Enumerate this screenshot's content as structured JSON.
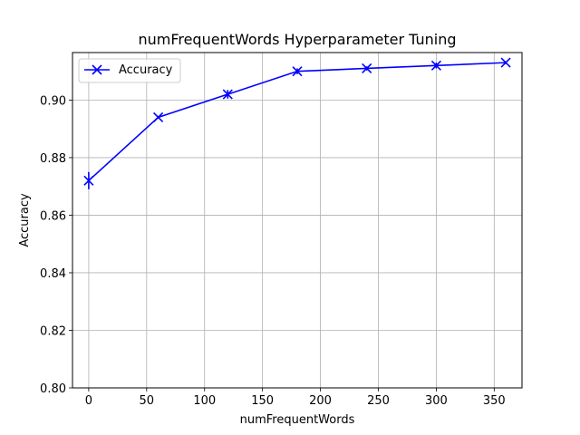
{
  "chart_data": {
    "type": "line",
    "title": "numFrequentWords Hyperparameter Tuning",
    "xlabel": "numFrequentWords",
    "ylabel": "Accuracy",
    "xlim": [
      -14,
      374
    ],
    "ylim": [
      0.8,
      0.9165
    ],
    "xticks": [
      0,
      50,
      100,
      150,
      200,
      250,
      300,
      350
    ],
    "yticks": [
      0.8,
      0.82,
      0.84,
      0.86,
      0.88,
      0.9
    ],
    "ytick_labels": [
      "0.80",
      "0.82",
      "0.84",
      "0.86",
      "0.88",
      "0.90"
    ],
    "grid": true,
    "legend_position": "top-left",
    "series": [
      {
        "name": "Accuracy",
        "color": "#0000ff",
        "marker": "x-star",
        "x": [
          0,
          60,
          120,
          180,
          240,
          300,
          360
        ],
        "y": [
          0.872,
          0.894,
          0.902,
          0.91,
          0.911,
          0.912,
          0.913
        ],
        "err": [
          0.003,
          0.0005,
          0.0015,
          0.001,
          0.0007,
          0.001,
          0.0005
        ]
      }
    ]
  }
}
